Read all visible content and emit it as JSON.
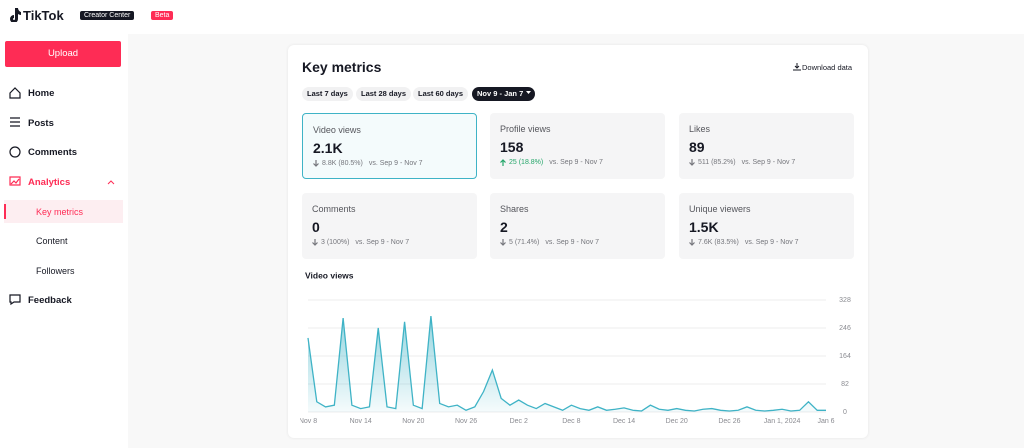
{
  "header": {
    "logo": "TikTok",
    "badge": "Creator Center",
    "beta": "Beta"
  },
  "sidebar": {
    "upload": "Upload",
    "nav": [
      "Home",
      "Posts",
      "Comments",
      "Analytics"
    ],
    "subnav": [
      "Key metrics",
      "Content",
      "Followers"
    ],
    "feedback": "Feedback"
  },
  "main": {
    "title": "Key metrics",
    "download": "Download data",
    "filters": [
      "Last 7 days",
      "Last 28 days",
      "Last 60 days",
      "Nov 9 - Jan 7"
    ],
    "cards": [
      {
        "label": "Video views",
        "value": "2.1K",
        "change": "8.8K (80.5%)",
        "trend": "down",
        "compare": "vs. Sep 9 - Nov 7"
      },
      {
        "label": "Profile views",
        "value": "158",
        "change": "25 (18.8%)",
        "trend": "up",
        "compare": "vs. Sep 9 - Nov 7"
      },
      {
        "label": "Likes",
        "value": "89",
        "change": "511 (85.2%)",
        "trend": "down",
        "compare": "vs. Sep 9 - Nov 7"
      },
      {
        "label": "Comments",
        "value": "0",
        "change": "3 (100%)",
        "trend": "down",
        "compare": "vs. Sep 9 - Nov 7"
      },
      {
        "label": "Shares",
        "value": "2",
        "change": "5 (71.4%)",
        "trend": "down",
        "compare": "vs. Sep 9 - Nov 7"
      },
      {
        "label": "Unique viewers",
        "value": "1.5K",
        "change": "7.6K (83.5%)",
        "trend": "down",
        "compare": "vs. Sep 9 - Nov 7"
      }
    ]
  },
  "chart_data": {
    "type": "area",
    "title": "Video views",
    "categories": [
      "Nov 8",
      null,
      null,
      null,
      null,
      null,
      "Nov 14",
      null,
      null,
      null,
      null,
      null,
      "Nov 20",
      null,
      null,
      null,
      null,
      null,
      "Nov 26",
      null,
      null,
      null,
      null,
      null,
      "Dec 2",
      null,
      null,
      null,
      null,
      null,
      "Dec 8",
      null,
      null,
      null,
      null,
      null,
      "Dec 14",
      null,
      null,
      null,
      null,
      null,
      "Dec 20",
      null,
      null,
      null,
      null,
      null,
      "Dec 26",
      null,
      null,
      null,
      null,
      null,
      "Jan 1, 2024",
      null,
      null,
      null,
      null,
      "Jan 6"
    ],
    "series": [
      {
        "name": "Video views",
        "color": "#3fb3c6",
        "values": [
          217,
          30,
          15,
          20,
          275,
          20,
          10,
          15,
          246,
          15,
          10,
          264,
          20,
          10,
          281,
          25,
          15,
          20,
          5,
          15,
          60,
          123,
          40,
          20,
          35,
          20,
          10,
          25,
          15,
          5,
          20,
          10,
          5,
          15,
          5,
          8,
          12,
          5,
          3,
          20,
          8,
          5,
          10,
          5,
          3,
          8,
          10,
          5,
          3,
          5,
          15,
          5,
          3,
          5,
          8,
          3,
          5,
          30,
          5,
          5
        ]
      }
    ],
    "ylim": [
      0,
      328
    ],
    "yticks": [
      0,
      82,
      164,
      246,
      328
    ],
    "grid": true
  }
}
